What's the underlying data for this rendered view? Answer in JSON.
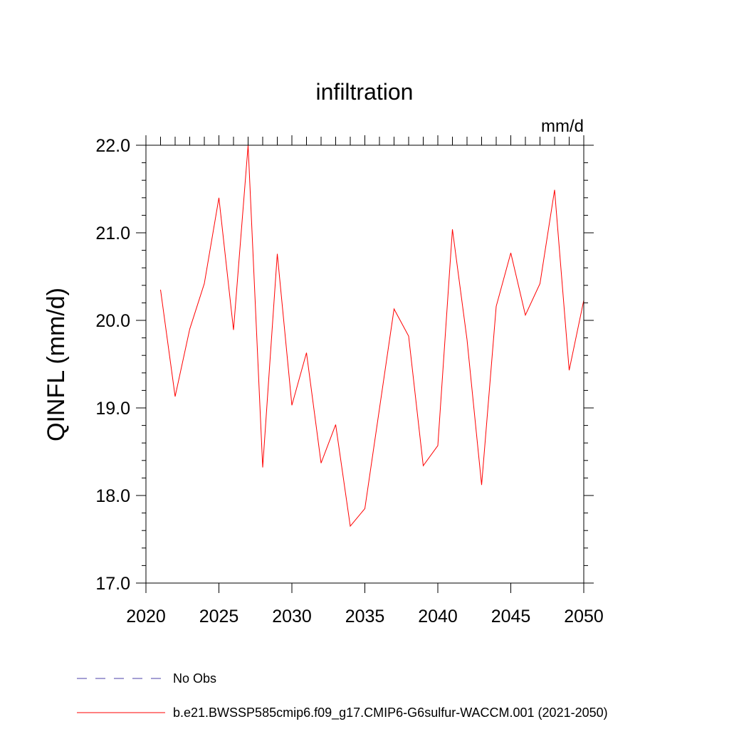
{
  "chart_data": {
    "type": "line",
    "title": "infiltration",
    "units_label": "mm/d",
    "ylabel": "QINFL  (mm/d)",
    "xlabel": "",
    "xlim": [
      2020,
      2050
    ],
    "ylim": [
      17.0,
      22.0
    ],
    "x_ticks": [
      2020,
      2025,
      2030,
      2035,
      2040,
      2045,
      2050
    ],
    "x_tick_labels": [
      "2020",
      "2025",
      "2030",
      "2035",
      "2040",
      "2045",
      "2050"
    ],
    "y_ticks": [
      17.0,
      18.0,
      19.0,
      20.0,
      21.0,
      22.0
    ],
    "y_tick_labels": [
      "17.0",
      "18.0",
      "19.0",
      "20.0",
      "21.0",
      "22.0"
    ],
    "grid": false,
    "legend_position": "bottom-left",
    "series": [
      {
        "name": "b.e21.BWSSP585cmip6.f09_g17.CMIP6-G6sulfur-WACCM.001 (2021-2050)",
        "color": "#ff0000",
        "style": "solid",
        "x": [
          2021,
          2022,
          2023,
          2024,
          2025,
          2026,
          2027,
          2028,
          2029,
          2030,
          2031,
          2032,
          2033,
          2034,
          2035,
          2036,
          2037,
          2038,
          2039,
          2040,
          2041,
          2042,
          2043,
          2044,
          2045,
          2046,
          2047,
          2048,
          2049,
          2050
        ],
        "values": [
          20.35,
          19.13,
          19.9,
          20.42,
          21.4,
          19.89,
          22.0,
          18.32,
          20.76,
          19.03,
          19.63,
          18.37,
          18.81,
          17.65,
          17.85,
          18.99,
          20.13,
          19.82,
          18.34,
          18.57,
          21.04,
          19.78,
          18.12,
          20.16,
          20.77,
          20.06,
          20.42,
          21.49,
          19.43,
          20.23
        ]
      }
    ],
    "legend": [
      {
        "label": "No Obs",
        "color": "#4b3fa8",
        "style": "dashed"
      },
      {
        "label": "b.e21.BWSSP585cmip6.f09_g17.CMIP6-G6sulfur-WACCM.001 (2021-2050)",
        "color": "#ff0000",
        "style": "solid"
      }
    ]
  }
}
